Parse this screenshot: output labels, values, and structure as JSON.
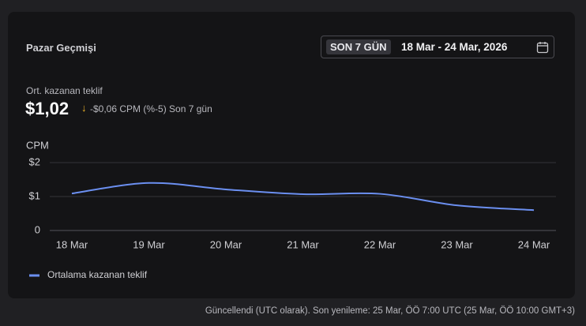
{
  "header": {
    "title": "Pazar Geçmişi",
    "range_chip": "SON 7 GÜN",
    "range_text": "18 Mar - 24 Mar, 2026"
  },
  "summary": {
    "label": "Ort. kazanan teklif",
    "value": "$1,02",
    "change_icon": "↓",
    "change": "-$0,06 CPM (%-5) Son 7 gün"
  },
  "chart_data": {
    "type": "line",
    "y_label": "CPM",
    "categories": [
      "18 Mar",
      "19 Mar",
      "20 Mar",
      "21 Mar",
      "22 Mar",
      "23 Mar",
      "24 Mar"
    ],
    "series": [
      {
        "name": "Ortalama kazanan teklif",
        "color": "#6b8ff0",
        "values": [
          1.09,
          1.4,
          1.21,
          1.07,
          1.08,
          0.74,
          0.6
        ]
      }
    ],
    "ylim": [
      0,
      2
    ],
    "yticks": [
      0,
      {
        "value": 1,
        "label": "$1"
      },
      {
        "value": 2,
        "label": "$2"
      }
    ],
    "grid": true
  },
  "footer": "Güncellendi (UTC olarak). Son yenileme: 25 Mar, ÖÖ 7:00 UTC (25 Mar, ÖÖ 10:00 GMT+3)"
}
